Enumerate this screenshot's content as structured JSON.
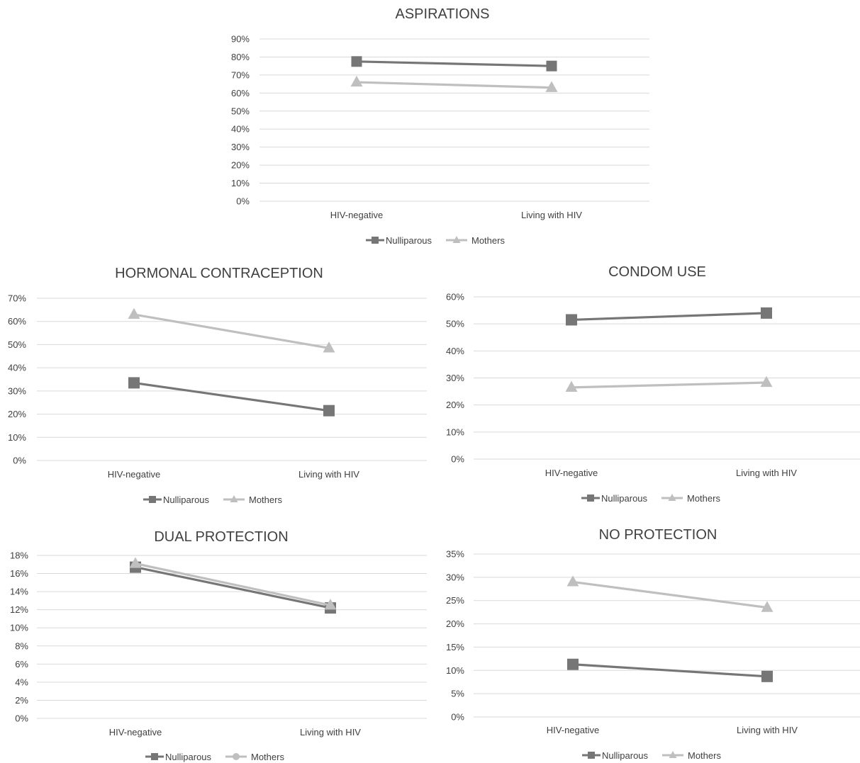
{
  "colors": {
    "nulliparous": "#767676",
    "mothers": "#bfbfbf",
    "grid": "#d9d9d9",
    "text": "#404040"
  },
  "legend": {
    "nulliparous": "Nulliparous",
    "mothers": "Mothers"
  },
  "chart_data": [
    {
      "type": "line",
      "title": "ASPIRATIONS",
      "categories": [
        "HIV-negative",
        "Living with HIV"
      ],
      "yticks": [
        "0%",
        "10%",
        "20%",
        "30%",
        "40%",
        "50%",
        "60%",
        "70%",
        "80%",
        "90%"
      ],
      "ylim": [
        0,
        90
      ],
      "grid": true,
      "legend_position": "bottom",
      "series": [
        {
          "name": "Nulliparous",
          "marker": "square",
          "values": [
            77.5,
            75
          ]
        },
        {
          "name": "Mothers",
          "marker": "triangle",
          "values": [
            66,
            63
          ]
        }
      ]
    },
    {
      "type": "line",
      "title": "HORMONAL CONTRACEPTION",
      "categories": [
        "HIV-negative",
        "Living with HIV"
      ],
      "yticks": [
        "0%",
        "10%",
        "20%",
        "30%",
        "40%",
        "50%",
        "60%",
        "70%"
      ],
      "ylim": [
        0,
        70
      ],
      "grid": true,
      "legend_position": "bottom",
      "series": [
        {
          "name": "Nulliparous",
          "marker": "square",
          "values": [
            33.5,
            21.5
          ]
        },
        {
          "name": "Mothers",
          "marker": "triangle",
          "values": [
            63,
            48.5
          ]
        }
      ]
    },
    {
      "type": "line",
      "title": "CONDOM USE",
      "categories": [
        "HIV-negative",
        "Living with HIV"
      ],
      "yticks": [
        "0%",
        "10%",
        "20%",
        "30%",
        "40%",
        "50%",
        "60%"
      ],
      "ylim": [
        0,
        60
      ],
      "grid": true,
      "legend_position": "bottom",
      "series": [
        {
          "name": "Nulliparous",
          "marker": "square",
          "values": [
            51.5,
            54
          ]
        },
        {
          "name": "Mothers",
          "marker": "triangle",
          "values": [
            26.5,
            28.3
          ]
        }
      ]
    },
    {
      "type": "line",
      "title": "DUAL PROTECTION",
      "categories": [
        "HIV-negative",
        "Living with HIV"
      ],
      "yticks": [
        "0%",
        "2%",
        "4%",
        "6%",
        "8%",
        "10%",
        "12%",
        "14%",
        "16%",
        "18%"
      ],
      "ylim": [
        0,
        18
      ],
      "grid": true,
      "legend_position": "bottom",
      "legend_markers": [
        "square",
        "circle"
      ],
      "series": [
        {
          "name": "Nulliparous",
          "marker": "square",
          "values": [
            16.7,
            12.2
          ]
        },
        {
          "name": "Mothers",
          "marker": "triangle",
          "values": [
            17.1,
            12.5
          ]
        }
      ]
    },
    {
      "type": "line",
      "title": "NO PROTECTION",
      "categories": [
        "HIV-negative",
        "Living with HIV"
      ],
      "yticks": [
        "0%",
        "5%",
        "10%",
        "15%",
        "20%",
        "25%",
        "30%",
        "35%"
      ],
      "ylim": [
        0,
        35
      ],
      "grid": true,
      "legend_position": "bottom",
      "series": [
        {
          "name": "Nulliparous",
          "marker": "square",
          "values": [
            11.3,
            8.7
          ]
        },
        {
          "name": "Mothers",
          "marker": "triangle",
          "values": [
            29,
            23.5
          ]
        }
      ]
    }
  ]
}
